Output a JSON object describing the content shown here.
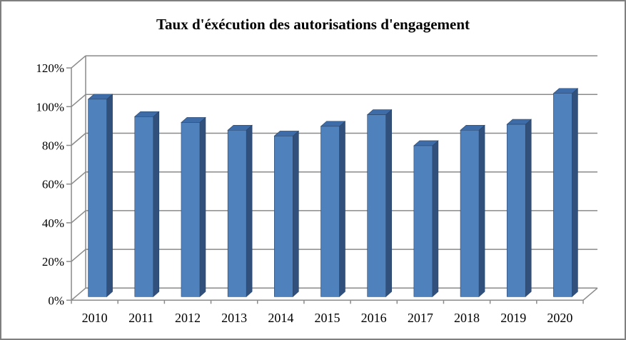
{
  "window": {
    "background": "#ffffff",
    "border_color": "#7f7f7f"
  },
  "chart_data": {
    "type": "bar",
    "style": "3d-column",
    "title": "Taux d'éxécution des autorisations d'engagement",
    "categories": [
      "2010",
      "2011",
      "2012",
      "2013",
      "2014",
      "2015",
      "2016",
      "2017",
      "2018",
      "2019",
      "2020"
    ],
    "values": [
      102,
      93,
      90,
      86,
      83,
      88,
      94,
      78,
      86,
      89,
      105
    ],
    "unit": "%",
    "xlabel": "",
    "ylabel": "",
    "ylim": [
      0,
      120
    ],
    "ytick_step": 20,
    "ytick_labels": [
      "0%",
      "20%",
      "40%",
      "60%",
      "80%",
      "100%",
      "120%"
    ],
    "grid": true,
    "legend": "none",
    "colors": {
      "bar_front": "#4F81BD",
      "bar_side": "#31517C",
      "bar_top": "#3E6CA8",
      "bar_edge": "#2A4568",
      "gridline": "#8a8a8a",
      "axis": "#8a8a8a",
      "text": "#000000"
    }
  }
}
